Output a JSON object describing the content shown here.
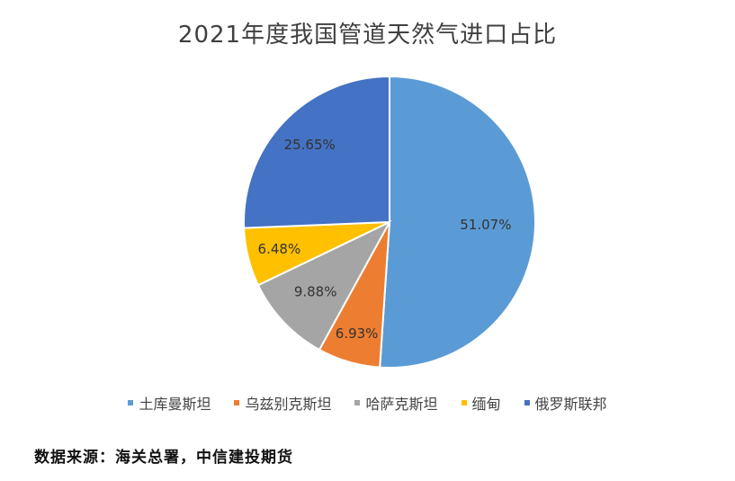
{
  "chart_data": {
    "type": "pie",
    "title": "2021年度我国管道天然气进口占比",
    "categories": [
      "土库曼斯坦",
      "乌兹别克斯坦",
      "哈萨克斯坦",
      "缅甸",
      "俄罗斯联邦"
    ],
    "values": [
      51.07,
      6.93,
      9.88,
      6.48,
      25.65
    ],
    "data_labels": [
      "51.07%",
      "6.93%",
      "9.88%",
      "6.48%",
      "25.65%"
    ],
    "colors": [
      "#5B9BD5",
      "#ED7D31",
      "#A5A5A5",
      "#FFC000",
      "#4472C4"
    ],
    "legend_position": "bottom",
    "start_angle": "12 o'clock, clockwise"
  },
  "footer": {
    "source": "数据来源：海关总署，中信建投期货"
  }
}
